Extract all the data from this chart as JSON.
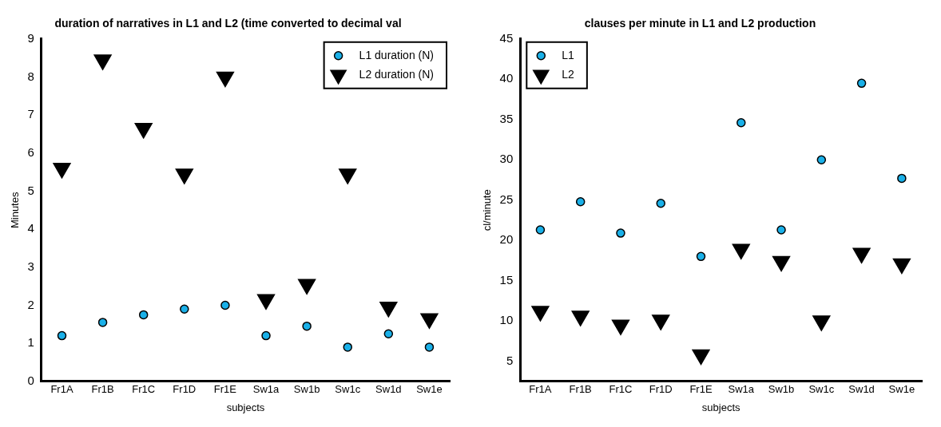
{
  "chart_data": [
    {
      "type": "scatter",
      "title": "duration of narratives in L1 and L2 (time converted to decimal val",
      "xlabel": "subjects",
      "ylabel": "Minutes",
      "categories": [
        "Fr1A",
        "Fr1B",
        "Fr1C",
        "Fr1D",
        "Fr1E",
        "Sw1a",
        "Sw1b",
        "Sw1c",
        "Sw1d",
        "Sw1e"
      ],
      "series": [
        {
          "name": "L1 duration (N)",
          "color": "#1ab0e8",
          "marker": "circle",
          "values": [
            1.2,
            1.55,
            1.75,
            1.9,
            2.0,
            1.2,
            1.45,
            0.9,
            1.25,
            0.9
          ]
        },
        {
          "name": "L2 duration (N)",
          "color": "#000000",
          "marker": "triangle",
          "values": [
            5.6,
            8.45,
            6.65,
            5.45,
            8.0,
            2.15,
            2.55,
            5.45,
            1.95,
            1.65
          ]
        }
      ],
      "ylim": [
        0,
        9
      ],
      "yticks": [
        0,
        1,
        2,
        3,
        4,
        5,
        6,
        7,
        8,
        9
      ],
      "grid": false,
      "legend": "top right"
    },
    {
      "type": "scatter",
      "title": "clauses per minute in L1 and L2 production",
      "xlabel": "subjects",
      "ylabel": "cl/minute",
      "categories": [
        "Fr1A",
        "Fr1B",
        "Fr1C",
        "Fr1D",
        "Fr1E",
        "Sw1a",
        "Sw1b",
        "Sw1c",
        "Sw1d",
        "Sw1e"
      ],
      "series": [
        {
          "name": "L1",
          "color": "#1ab0e8",
          "marker": "circle",
          "values": [
            21.3,
            24.8,
            20.9,
            24.6,
            18.0,
            34.6,
            21.3,
            30.0,
            39.5,
            27.7
          ]
        },
        {
          "name": "L2",
          "color": "#000000",
          "marker": "triangle",
          "values": [
            11.2,
            10.6,
            9.5,
            10.1,
            5.8,
            18.9,
            17.4,
            10.0,
            18.4,
            17.1
          ]
        }
      ],
      "ylim": [
        2.5,
        45
      ],
      "yticks": [
        5,
        10,
        15,
        20,
        25,
        30,
        35,
        40,
        45
      ],
      "grid": false,
      "legend": "top left"
    }
  ]
}
